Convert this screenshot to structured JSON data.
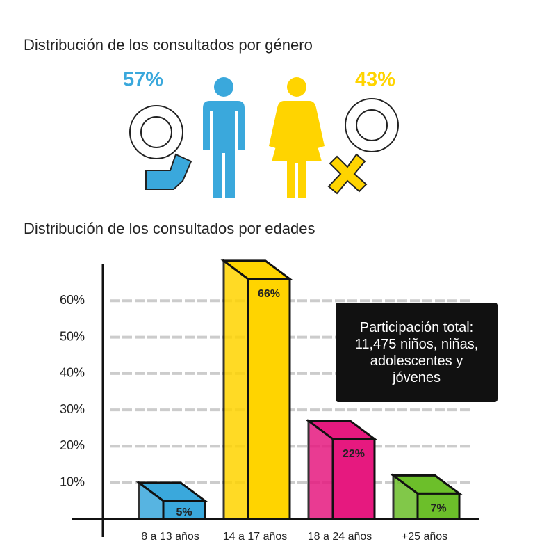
{
  "chart_data": [
    {
      "type": "pictogram",
      "title": "Distribución de los consultados por género",
      "values": [
        57,
        43
      ],
      "value_labels": [
        "57%",
        "43%"
      ],
      "colors": [
        "#3aa8dc",
        "#ffd400"
      ]
    },
    {
      "type": "bar",
      "title": "Distribución de los consultados por edades",
      "categories": [
        "8 a 13 años",
        "14 a 17 años",
        "18 a 24 años",
        "+25 años"
      ],
      "values": [
        5,
        66,
        22,
        7
      ],
      "value_labels": [
        "5%",
        "66%",
        "22%",
        "7%"
      ],
      "colors": [
        "#3aa8dc",
        "#ffd400",
        "#e6197f",
        "#6cbf2a"
      ],
      "ylim": [
        0,
        70
      ],
      "yticks": [
        {
          "value": 10,
          "label": "10%"
        },
        {
          "value": 20,
          "label": "20%"
        },
        {
          "value": 30,
          "label": "30%"
        },
        {
          "value": 40,
          "label": "40%"
        },
        {
          "value": 50,
          "label": "50%"
        },
        {
          "value": 60,
          "label": "60%"
        }
      ],
      "grid": true,
      "annotation": "Participación total: 11,475 niños, niñas, adolescentes y jóvenes"
    }
  ]
}
